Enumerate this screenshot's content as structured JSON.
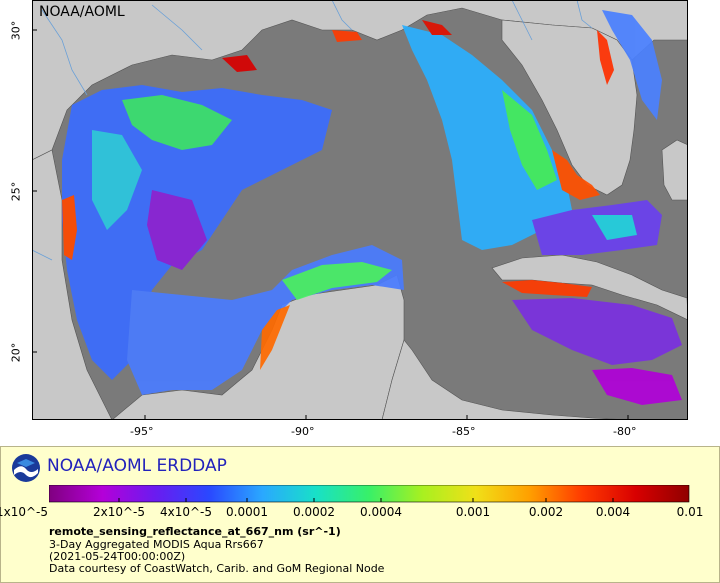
{
  "map": {
    "watermark": "NOAA/AOML",
    "x_ticks": [
      "-95°",
      "-90°",
      "-85°",
      "-80°"
    ],
    "y_ticks": [
      "30°",
      "25°",
      "20°"
    ],
    "colors": {
      "ocean_nodata": "#7a7a7a",
      "land": "#c8c8c8",
      "border": "#555555",
      "river": "#6aa0d8"
    }
  },
  "legend": {
    "title": "NOAA/AOML ERDDAP",
    "colorbar_ticks": [
      "1x10^-5",
      "2x10^-5",
      "4x10^-5",
      "0.0001",
      "0.0002",
      "0.0004",
      "0.001",
      "0.002",
      "0.004",
      "0.01"
    ],
    "colormap": [
      "#800080",
      "#b400d8",
      "#6a1cf0",
      "#2a48ff",
      "#2aa8ff",
      "#18e0c8",
      "#38f068",
      "#a8f020",
      "#f0e018",
      "#ffa000",
      "#ff3a00",
      "#d80000",
      "#900000"
    ],
    "variable": "remote_sensing_reflectance_at_667_nm (sr^-1)",
    "line1": "3-Day Aggregated MODIS Aqua Rrs667",
    "line2": "(2021-05-24T00:00:00Z)",
    "line3": "Data courtesy of CoastWatch, Carib. and GoM Regional Node"
  }
}
